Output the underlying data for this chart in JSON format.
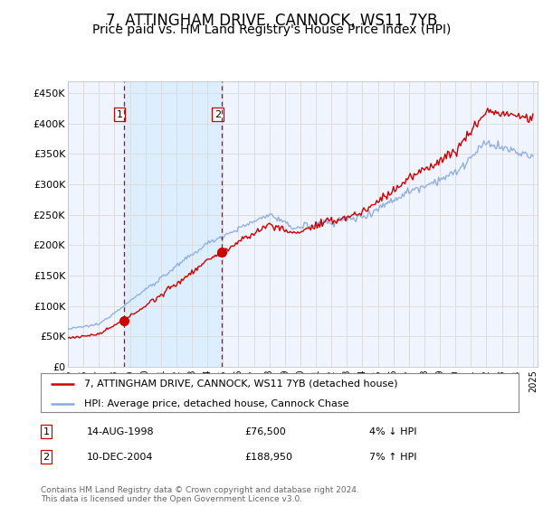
{
  "title": "7, ATTINGHAM DRIVE, CANNOCK, WS11 7YB",
  "subtitle": "Price paid vs. HM Land Registry's House Price Index (HPI)",
  "title_fontsize": 12,
  "subtitle_fontsize": 10,
  "ylabel_ticks": [
    "£0",
    "£50K",
    "£100K",
    "£150K",
    "£200K",
    "£250K",
    "£300K",
    "£350K",
    "£400K",
    "£450K"
  ],
  "ytick_values": [
    0,
    50000,
    100000,
    150000,
    200000,
    250000,
    300000,
    350000,
    400000,
    450000
  ],
  "ylim": [
    0,
    470000
  ],
  "xlim_start": 1995.0,
  "xlim_end": 2025.3,
  "sale1_date": 1998.62,
  "sale1_price": 76500,
  "sale2_date": 2004.95,
  "sale2_price": 188950,
  "property_color": "#cc0000",
  "hpi_color": "#88aadd",
  "shade_color": "#ddeeff",
  "vline_color": "#cc0000",
  "marker_color": "#cc0000",
  "legend_label_property": "7, ATTINGHAM DRIVE, CANNOCK, WS11 7YB (detached house)",
  "legend_label_hpi": "HPI: Average price, detached house, Cannock Chase",
  "table_row1": [
    "1",
    "14-AUG-1998",
    "£76,500",
    "4% ↓ HPI"
  ],
  "table_row2": [
    "2",
    "10-DEC-2004",
    "£188,950",
    "7% ↑ HPI"
  ],
  "footer": "Contains HM Land Registry data © Crown copyright and database right 2024.\nThis data is licensed under the Open Government Licence v3.0.",
  "background_color": "#ffffff",
  "grid_color": "#dddddd",
  "chart_bg": "#f0f4ff"
}
